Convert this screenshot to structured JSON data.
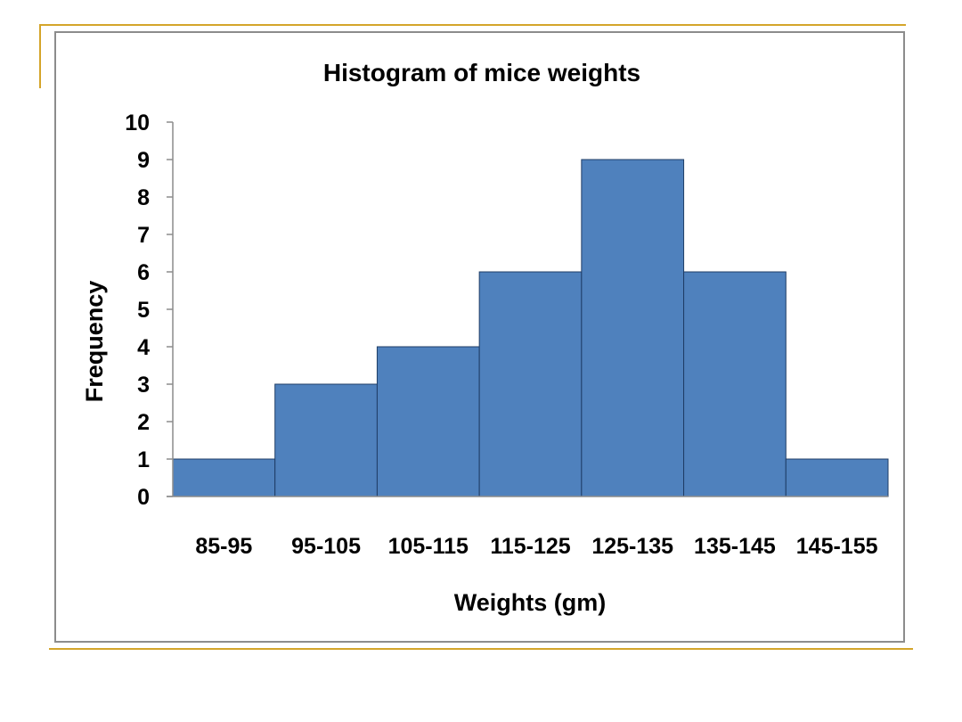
{
  "colors": {
    "bar_fill": "#4f81bd",
    "bar_stroke": "#1f3d66",
    "frame_border": "#8c8c8c",
    "accent_line": "#d4a52a"
  },
  "chart_data": {
    "type": "bar",
    "title": "Histogram of mice weights",
    "xlabel": "Weights (gm)",
    "ylabel": "Frequency",
    "categories": [
      "85-95",
      "95-105",
      "105-115",
      "115-125",
      "125-135",
      "135-145",
      "145-155"
    ],
    "values": [
      1,
      3,
      4,
      6,
      9,
      6,
      1
    ],
    "ylim": [
      0,
      10
    ],
    "yticks": [
      0,
      1,
      2,
      3,
      4,
      5,
      6,
      7,
      8,
      9,
      10
    ],
    "grid": false,
    "legend": "none"
  }
}
